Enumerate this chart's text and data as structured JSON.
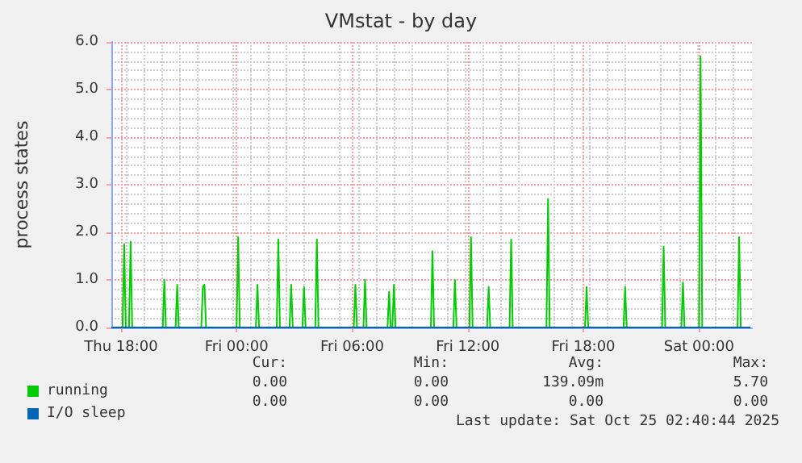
{
  "chart_data": {
    "type": "line",
    "title": "VMstat - by day",
    "ylabel": "process states",
    "xlim": [
      "2025-10-23T17:30",
      "2025-10-25T02:45"
    ],
    "xticks": [
      {
        "value": "2025-10-23T18:00",
        "label": "Thu 18:00"
      },
      {
        "value": "2025-10-24T00:00",
        "label": "Fri 00:00"
      },
      {
        "value": "2025-10-24T06:00",
        "label": "Fri 06:00"
      },
      {
        "value": "2025-10-24T12:00",
        "label": "Fri 12:00"
      },
      {
        "value": "2025-10-24T18:00",
        "label": "Fri 18:00"
      },
      {
        "value": "2025-10-25T00:00",
        "label": "Sat 00:00"
      }
    ],
    "ylim": [
      0,
      6
    ],
    "yticks": [
      {
        "value": 0,
        "label": "0.0"
      },
      {
        "value": 1,
        "label": "1.0"
      },
      {
        "value": 2,
        "label": "2.0"
      },
      {
        "value": 3,
        "label": "3.0"
      },
      {
        "value": 4,
        "label": "4.0"
      },
      {
        "value": 5,
        "label": "5.0"
      },
      {
        "value": 6,
        "label": "6.0"
      }
    ],
    "grid": true,
    "legend": "bottom left",
    "marker": "none",
    "line_style": "solid",
    "series": [
      {
        "name": "running",
        "color": "#00cc00",
        "x": [
          "2025-10-23T17:30",
          "2025-10-23T18:05",
          "2025-10-23T18:10",
          "2025-10-23T18:15",
          "2025-10-23T18:25",
          "2025-10-23T18:30",
          "2025-10-23T18:35",
          "2025-10-23T20:10",
          "2025-10-23T20:15",
          "2025-10-23T20:20",
          "2025-10-23T20:50",
          "2025-10-23T20:55",
          "2025-10-23T21:00",
          "2025-10-23T22:10",
          "2025-10-23T22:15",
          "2025-10-23T22:20",
          "2025-10-23T22:25",
          "2025-10-24T00:00",
          "2025-10-24T00:05",
          "2025-10-24T00:10",
          "2025-10-24T01:00",
          "2025-10-24T01:05",
          "2025-10-24T01:10",
          "2025-10-24T02:05",
          "2025-10-24T02:10",
          "2025-10-24T02:15",
          "2025-10-24T02:45",
          "2025-10-24T02:50",
          "2025-10-24T02:55",
          "2025-10-24T03:25",
          "2025-10-24T03:30",
          "2025-10-24T03:35",
          "2025-10-24T04:05",
          "2025-10-24T04:10",
          "2025-10-24T04:15",
          "2025-10-24T06:05",
          "2025-10-24T06:10",
          "2025-10-24T06:15",
          "2025-10-24T06:35",
          "2025-10-24T06:40",
          "2025-10-24T06:45",
          "2025-10-24T07:50",
          "2025-10-24T07:55",
          "2025-10-24T08:00",
          "2025-10-24T08:05",
          "2025-10-24T08:10",
          "2025-10-24T08:15",
          "2025-10-24T10:05",
          "2025-10-24T10:10",
          "2025-10-24T10:15",
          "2025-10-24T11:15",
          "2025-10-24T11:20",
          "2025-10-24T11:25",
          "2025-10-24T12:05",
          "2025-10-24T12:10",
          "2025-10-24T12:15",
          "2025-10-24T13:00",
          "2025-10-24T13:05",
          "2025-10-24T13:10",
          "2025-10-24T14:10",
          "2025-10-24T14:15",
          "2025-10-24T14:20",
          "2025-10-24T16:05",
          "2025-10-24T16:10",
          "2025-10-24T16:15",
          "2025-10-24T18:05",
          "2025-10-24T18:10",
          "2025-10-24T18:15",
          "2025-10-24T20:05",
          "2025-10-24T20:10",
          "2025-10-24T20:15",
          "2025-10-24T22:05",
          "2025-10-24T22:10",
          "2025-10-24T22:15",
          "2025-10-24T23:05",
          "2025-10-24T23:10",
          "2025-10-24T23:15",
          "2025-10-25T00:00",
          "2025-10-25T00:05",
          "2025-10-25T00:10",
          "2025-10-25T02:00",
          "2025-10-25T02:05",
          "2025-10-25T02:10",
          "2025-10-25T02:40"
        ],
        "values": [
          0,
          0,
          1.75,
          0,
          0,
          1.8,
          0,
          0,
          1.0,
          0,
          0,
          0.9,
          0,
          0,
          0.85,
          0.9,
          0,
          0,
          1.9,
          0,
          0,
          0.9,
          0,
          0,
          1.85,
          0,
          0,
          0.9,
          0,
          0,
          0.85,
          0,
          0,
          1.85,
          0,
          0,
          0.9,
          0,
          0,
          1.0,
          0,
          0,
          0.75,
          0,
          0,
          0.9,
          0,
          0,
          1.6,
          0,
          0,
          1.0,
          0,
          0,
          1.9,
          0,
          0,
          0.85,
          0,
          0,
          1.85,
          0,
          0,
          2.7,
          0,
          0,
          0.85,
          0,
          0,
          0.85,
          0,
          0,
          1.7,
          0,
          0,
          0.95,
          0,
          0,
          5.7,
          0,
          0,
          1.9,
          0,
          0
        ]
      },
      {
        "name": "I/O sleep",
        "color": "#0066b3",
        "x": [
          "2025-10-23T17:30",
          "2025-10-25T02:40"
        ],
        "values": [
          0,
          0
        ]
      }
    ],
    "annotations": [
      "Cur:",
      "Min:",
      "Avg:",
      "Max:",
      "0.00",
      "0.00",
      "139.09m",
      "5.70",
      "0.00",
      "0.00",
      "0.00",
      "0.00",
      "Last update: Sat Oct 25 02:40:44 2025"
    ]
  }
}
